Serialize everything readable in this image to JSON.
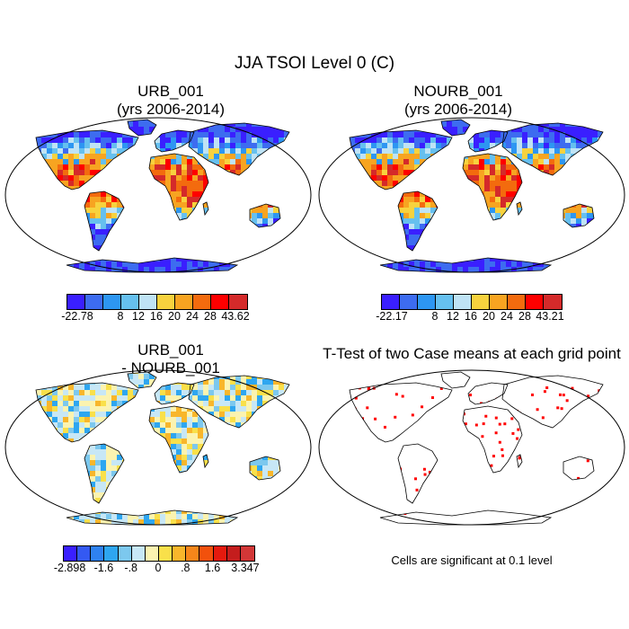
{
  "title": "JJA TSOI Level 0 (C)",
  "panels": [
    {
      "id": "urb",
      "title_line1": "URB_001",
      "title_line2": "(yrs 2006-2014)",
      "colorbar": {
        "colors": [
          "#3a1fff",
          "#3d6cf0",
          "#2d96f2",
          "#66c0ef",
          "#bfe3f5",
          "#f7d23e",
          "#f7a421",
          "#f36b0e",
          "#fe0000",
          "#d42a2a"
        ],
        "labels": [
          "-22.78",
          "8",
          "12",
          "16",
          "20",
          "24",
          "28",
          "43.62"
        ]
      }
    },
    {
      "id": "nourb",
      "title_line1": "NOURB_001",
      "title_line2": "(yrs 2006-2014)",
      "colorbar": {
        "colors": [
          "#3a1fff",
          "#3d6cf0",
          "#2d96f2",
          "#66c0ef",
          "#bfe3f5",
          "#f7d23e",
          "#f7a421",
          "#f36b0e",
          "#fe0000",
          "#d42a2a"
        ],
        "labels": [
          "-22.17",
          "8",
          "12",
          "16",
          "20",
          "24",
          "28",
          "43.21"
        ]
      }
    },
    {
      "id": "diff",
      "title_line1": "URB_001",
      "title_line2": "- NOURB_001",
      "colorbar": {
        "colors": [
          "#3a1fff",
          "#3459f2",
          "#2f82f0",
          "#2ea6f0",
          "#7cc8ee",
          "#c7e7f6",
          "#fbf3b0",
          "#f9e04a",
          "#f8b62b",
          "#f5861a",
          "#f2510c",
          "#e41a0e",
          "#c41d1d",
          "#d23737"
        ],
        "labels": [
          "-2.898",
          "-1.6",
          "-.8",
          "0",
          ".8",
          "1.6",
          "3.347"
        ]
      }
    },
    {
      "id": "ttest",
      "title_line1": "T-Test of two Case means at each grid point",
      "note": "Cells are significant at 0.1 level"
    }
  ],
  "colors": {
    "significant": "#ff0000",
    "coast": "#000000"
  }
}
